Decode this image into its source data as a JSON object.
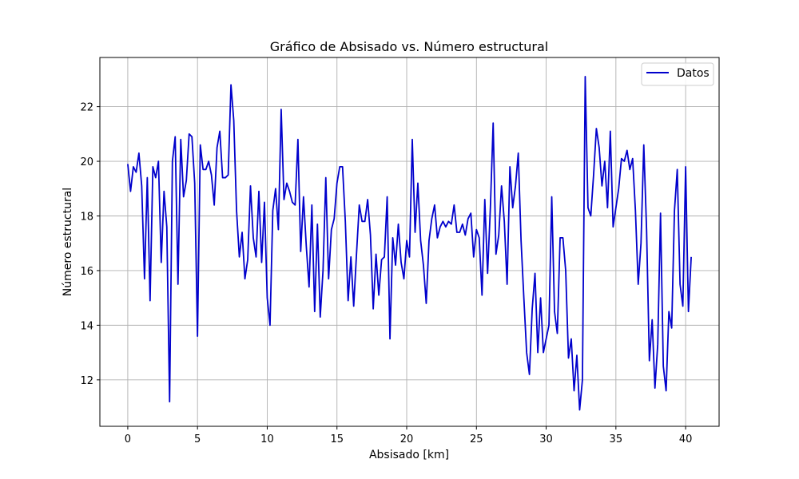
{
  "chart_data": {
    "type": "line",
    "title": "Gráfico de Absisado vs. Número estructural",
    "xlabel": "Absisado [km]",
    "ylabel": "Número estructural",
    "xlim": [
      -2.0,
      42.4
    ],
    "ylim": [
      10.3,
      23.8
    ],
    "xticks": [
      0,
      5,
      10,
      15,
      20,
      25,
      30,
      35,
      40
    ],
    "yticks": [
      12,
      14,
      16,
      18,
      20,
      22
    ],
    "grid": true,
    "legend_position": "top-right",
    "series": [
      {
        "name": "Datos",
        "color": "#0000cc",
        "x": [
          0.0,
          0.2,
          0.4,
          0.6,
          0.8,
          1.0,
          1.2,
          1.4,
          1.6,
          1.8,
          2.0,
          2.2,
          2.4,
          2.6,
          2.8,
          3.0,
          3.2,
          3.4,
          3.6,
          3.8,
          4.0,
          4.2,
          4.4,
          4.6,
          4.8,
          5.0,
          5.2,
          5.4,
          5.6,
          5.8,
          6.0,
          6.2,
          6.4,
          6.6,
          6.8,
          7.0,
          7.2,
          7.4,
          7.6,
          7.8,
          8.0,
          8.2,
          8.4,
          8.6,
          8.8,
          9.0,
          9.2,
          9.4,
          9.6,
          9.8,
          10.0,
          10.2,
          10.4,
          10.6,
          10.8,
          11.0,
          11.2,
          11.4,
          11.6,
          11.8,
          12.0,
          12.2,
          12.4,
          12.6,
          12.8,
          13.0,
          13.2,
          13.4,
          13.6,
          13.8,
          14.0,
          14.2,
          14.4,
          14.6,
          14.8,
          15.0,
          15.2,
          15.4,
          15.6,
          15.8,
          16.0,
          16.2,
          16.4,
          16.6,
          16.8,
          17.0,
          17.2,
          17.4,
          17.6,
          17.8,
          18.0,
          18.2,
          18.4,
          18.6,
          18.8,
          19.0,
          19.2,
          19.4,
          19.6,
          19.8,
          20.0,
          20.2,
          20.4,
          20.6,
          20.8,
          21.0,
          21.2,
          21.4,
          21.6,
          21.8,
          22.0,
          22.2,
          22.4,
          22.6,
          22.8,
          23.0,
          23.2,
          23.4,
          23.6,
          23.8,
          24.0,
          24.2,
          24.4,
          24.6,
          24.8,
          25.0,
          25.2,
          25.4,
          25.6,
          25.8,
          26.0,
          26.2,
          26.4,
          26.6,
          26.8,
          27.0,
          27.2,
          27.4,
          27.6,
          27.8,
          28.0,
          28.2,
          28.4,
          28.6,
          28.8,
          29.0,
          29.2,
          29.4,
          29.6,
          29.8,
          30.0,
          30.2,
          30.4,
          30.6,
          30.8,
          31.0,
          31.2,
          31.4,
          31.6,
          31.8,
          32.0,
          32.2,
          32.4,
          32.6,
          32.8,
          33.0,
          33.2,
          33.4,
          33.6,
          33.8,
          34.0,
          34.2,
          34.4,
          34.6,
          34.8,
          35.0,
          35.2,
          35.4,
          35.6,
          35.8,
          36.0,
          36.2,
          36.4,
          36.6,
          36.8,
          37.0,
          37.2,
          37.4,
          37.6,
          37.8,
          38.0,
          38.2,
          38.4,
          38.6,
          38.8,
          39.0,
          39.2,
          39.4,
          39.6,
          39.8,
          40.0,
          40.2,
          40.4
        ],
        "y": [
          19.9,
          18.9,
          19.8,
          19.6,
          20.3,
          19.1,
          15.7,
          19.4,
          14.9,
          19.8,
          19.4,
          20.0,
          16.3,
          18.9,
          17.6,
          11.2,
          20.0,
          20.9,
          15.5,
          20.8,
          18.7,
          19.3,
          21.0,
          20.9,
          19.2,
          13.6,
          20.6,
          19.7,
          19.7,
          20.0,
          19.5,
          18.4,
          20.5,
          21.1,
          19.4,
          19.4,
          19.5,
          22.8,
          21.5,
          18.2,
          16.5,
          17.4,
          15.7,
          16.4,
          19.1,
          17.2,
          16.5,
          18.9,
          16.3,
          18.5,
          15.0,
          14.0,
          18.2,
          19.0,
          17.5,
          21.9,
          18.6,
          19.2,
          18.9,
          18.5,
          18.4,
          20.8,
          16.7,
          18.7,
          16.9,
          15.4,
          18.4,
          14.5,
          17.7,
          14.3,
          16.0,
          19.4,
          15.7,
          17.5,
          17.9,
          19.2,
          19.8,
          19.8,
          17.8,
          14.9,
          16.5,
          14.7,
          16.6,
          18.4,
          17.8,
          17.8,
          18.6,
          17.3,
          14.6,
          16.6,
          15.1,
          16.4,
          16.5,
          18.7,
          13.5,
          17.2,
          16.2,
          17.7,
          16.3,
          15.7,
          17.1,
          16.5,
          20.8,
          17.4,
          19.2,
          17.1,
          16.2,
          14.8,
          17.1,
          17.9,
          18.4,
          17.2,
          17.6,
          17.8,
          17.6,
          17.8,
          17.7,
          18.4,
          17.4,
          17.4,
          17.7,
          17.3,
          17.9,
          18.1,
          16.5,
          17.5,
          17.2,
          15.1,
          18.6,
          15.9,
          18.3,
          21.4,
          16.6,
          17.3,
          19.1,
          17.8,
          15.5,
          19.8,
          18.3,
          19.1,
          20.3,
          17.1,
          15.0,
          13.0,
          12.2,
          14.6,
          15.9,
          13.0,
          15.0,
          13.0,
          13.5,
          14.0,
          18.7,
          14.5,
          13.7,
          17.2,
          17.2,
          16.0,
          12.8,
          13.5,
          11.6,
          12.9,
          10.9,
          12.0,
          23.1,
          18.3,
          18.0,
          19.5,
          21.2,
          20.5,
          19.1,
          20.0,
          18.3,
          21.1,
          17.6,
          18.3,
          19.0,
          20.1,
          20.0,
          20.4,
          19.7,
          20.1,
          18.2,
          15.5,
          17.0,
          20.6,
          17.5,
          12.7,
          14.2,
          11.7,
          13.3,
          18.1,
          12.5,
          11.6,
          14.5,
          13.9,
          18.2,
          19.7,
          15.5,
          14.7,
          19.8,
          14.5,
          16.5
        ]
      }
    ]
  }
}
